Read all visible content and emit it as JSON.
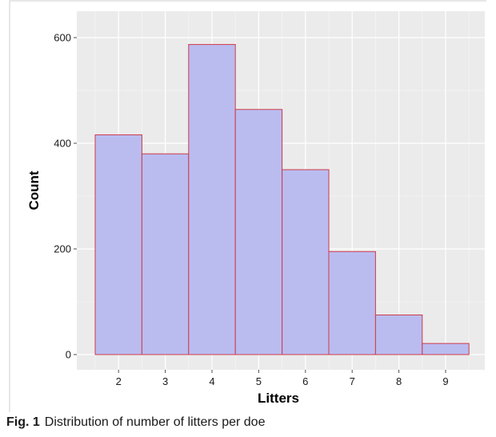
{
  "figure": {
    "caption_label": "Fig. 1",
    "caption_text": "Distribution of number of litters per doe"
  },
  "chart_data": {
    "type": "bar",
    "categories": [
      "2",
      "3",
      "4",
      "5",
      "6",
      "7",
      "8",
      "9"
    ],
    "values": [
      416,
      380,
      587,
      464,
      350,
      195,
      75,
      21
    ],
    "xlabel": "Litters",
    "ylabel": "Count",
    "ylim": [
      0,
      600
    ],
    "yticks": [
      0,
      200,
      400,
      600
    ],
    "grid": true,
    "legend": "none",
    "colors": {
      "panel_background": "#ebebeb",
      "grid_major": "#ffffff",
      "grid_minor": "#f5f5f5",
      "bar_fill": "#babcf0",
      "bar_stroke": "#cf3a4a"
    }
  }
}
